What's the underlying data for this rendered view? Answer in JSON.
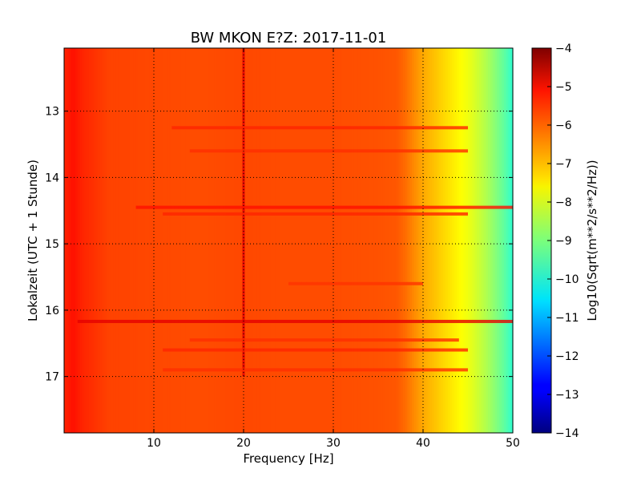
{
  "chart_data": {
    "type": "heatmap",
    "title": "BW MKON E?Z: 2017-11-01",
    "xlabel": "Frequency [Hz]",
    "ylabel": "Lokalzeit (UTC + 1 Stunde)",
    "xlim": [
      0,
      50
    ],
    "ylim": [
      17.85,
      12.05
    ],
    "x_ticks": [
      10,
      20,
      30,
      40,
      50
    ],
    "x_tick_labels": [
      "10",
      "20",
      "30",
      "40",
      "50"
    ],
    "y_ticks": [
      13,
      14,
      15,
      16,
      17
    ],
    "y_tick_labels": [
      "13",
      "14",
      "15",
      "16",
      "17"
    ],
    "grid": true,
    "colormap": "jet",
    "colorbar": {
      "label": "Log10(Sqrt(m**2/s**2/Hz))",
      "min": -14,
      "max": -4,
      "ticks": [
        -4,
        -5,
        -6,
        -7,
        -8,
        -9,
        -10,
        -11,
        -12,
        -13,
        -14
      ],
      "tick_labels": [
        "−4",
        "−5",
        "−6",
        "−7",
        "−8",
        "−9",
        "−10",
        "−11",
        "−12",
        "−13",
        "−14"
      ]
    },
    "spectrum_profile": {
      "frequency_hz": [
        0,
        1,
        2,
        5,
        10,
        15,
        20,
        25,
        30,
        35,
        37,
        38,
        39,
        40,
        41,
        42,
        43,
        44,
        45,
        46,
        47,
        48,
        49,
        50
      ],
      "value": [
        -5.6,
        -5.4,
        -5.6,
        -5.9,
        -5.95,
        -6.0,
        -5.95,
        -6.0,
        -6.0,
        -6.05,
        -6.1,
        -6.3,
        -6.6,
        -6.9,
        -7.1,
        -7.3,
        -7.5,
        -7.7,
        -7.9,
        -8.2,
        -8.5,
        -8.9,
        -9.3,
        -9.8
      ]
    },
    "features": [
      {
        "kind": "line_frequency",
        "frequency_hz": 20.0,
        "time_from": 12.05,
        "time_to": 17.0,
        "value": -5.0
      },
      {
        "kind": "band_time",
        "time": 16.17,
        "freq_from": 1.5,
        "freq_to": 50,
        "value": -5.0
      },
      {
        "kind": "band_time",
        "time": 14.45,
        "freq_from": 8,
        "freq_to": 50,
        "value": -5.4
      },
      {
        "kind": "band_time",
        "time": 14.55,
        "freq_from": 11,
        "freq_to": 45,
        "value": -5.6
      },
      {
        "kind": "band_time",
        "time": 13.25,
        "freq_from": 12,
        "freq_to": 45,
        "value": -5.6
      },
      {
        "kind": "band_time",
        "time": 13.6,
        "freq_from": 14,
        "freq_to": 45,
        "value": -5.7
      },
      {
        "kind": "band_time",
        "time": 16.6,
        "freq_from": 11,
        "freq_to": 45,
        "value": -5.6
      },
      {
        "kind": "band_time",
        "time": 16.9,
        "freq_from": 11,
        "freq_to": 45,
        "value": -5.7
      },
      {
        "kind": "band_time",
        "time": 16.45,
        "freq_from": 14,
        "freq_to": 44,
        "value": -5.7
      },
      {
        "kind": "band_time",
        "time": 15.6,
        "freq_from": 25,
        "freq_to": 40,
        "value": -5.75
      }
    ]
  }
}
